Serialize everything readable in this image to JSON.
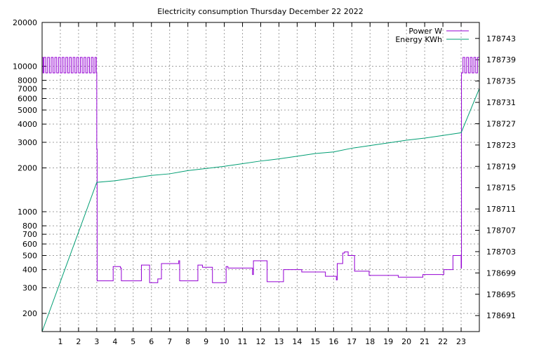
{
  "chart_data": {
    "type": "line",
    "title": "Electricity consumption Thursday December 22 2022",
    "x_ticks": [
      1,
      2,
      3,
      4,
      5,
      6,
      7,
      8,
      9,
      10,
      11,
      12,
      13,
      14,
      15,
      16,
      17,
      18,
      19,
      20,
      21,
      22,
      23
    ],
    "xlim": [
      0,
      24
    ],
    "y_left": {
      "scale": "log",
      "lim": [
        150,
        20000
      ],
      "ticks": [
        200,
        300,
        400,
        500,
        600,
        700,
        800,
        1000,
        2000,
        3000,
        4000,
        5000,
        6000,
        7000,
        8000,
        10000,
        20000
      ]
    },
    "y_right": {
      "lim": [
        178688,
        178746
      ],
      "ticks": [
        178691,
        178695,
        178699,
        178703,
        178707,
        178711,
        178715,
        178719,
        178723,
        178727,
        178731,
        178735,
        178739,
        178743
      ]
    },
    "legend": {
      "placement": "top-right"
    },
    "grid": true,
    "series": [
      {
        "name": "Power W",
        "axis": "left",
        "color": "#9400d3",
        "step": true,
        "points": [
          [
            0.0,
            11500
          ],
          [
            0.05,
            9000
          ],
          [
            0.1,
            11500
          ],
          [
            0.2,
            9000
          ],
          [
            0.3,
            11500
          ],
          [
            0.4,
            9000
          ],
          [
            0.5,
            11500
          ],
          [
            0.6,
            9000
          ],
          [
            0.7,
            11500
          ],
          [
            0.8,
            9000
          ],
          [
            0.9,
            11500
          ],
          [
            1.0,
            9000
          ],
          [
            1.1,
            11500
          ],
          [
            1.2,
            9000
          ],
          [
            1.3,
            11500
          ],
          [
            1.4,
            9000
          ],
          [
            1.5,
            11500
          ],
          [
            1.6,
            9000
          ],
          [
            1.7,
            11500
          ],
          [
            1.8,
            9000
          ],
          [
            1.9,
            11500
          ],
          [
            2.0,
            9000
          ],
          [
            2.1,
            11500
          ],
          [
            2.2,
            9000
          ],
          [
            2.3,
            11500
          ],
          [
            2.4,
            9000
          ],
          [
            2.5,
            11500
          ],
          [
            2.6,
            9000
          ],
          [
            2.7,
            11500
          ],
          [
            2.8,
            9000
          ],
          [
            2.9,
            11500
          ],
          [
            2.98,
            9000
          ],
          [
            3.0,
            2700
          ],
          [
            3.02,
            335
          ],
          [
            3.85,
            335
          ],
          [
            3.9,
            420
          ],
          [
            4.3,
            410
          ],
          [
            4.35,
            335
          ],
          [
            5.4,
            335
          ],
          [
            5.45,
            430
          ],
          [
            5.85,
            430
          ],
          [
            5.9,
            325
          ],
          [
            6.3,
            325
          ],
          [
            6.35,
            345
          ],
          [
            6.5,
            345
          ],
          [
            6.55,
            440
          ],
          [
            7.45,
            440
          ],
          [
            7.5,
            460
          ],
          [
            7.55,
            335
          ],
          [
            8.5,
            335
          ],
          [
            8.55,
            430
          ],
          [
            8.8,
            415
          ],
          [
            9.3,
            415
          ],
          [
            9.35,
            325
          ],
          [
            10.0,
            325
          ],
          [
            10.1,
            420
          ],
          [
            10.2,
            410
          ],
          [
            11.5,
            410
          ],
          [
            11.55,
            370
          ],
          [
            11.6,
            460
          ],
          [
            12.3,
            460
          ],
          [
            12.35,
            330
          ],
          [
            13.2,
            330
          ],
          [
            13.25,
            400
          ],
          [
            14.2,
            400
          ],
          [
            14.25,
            385
          ],
          [
            15.5,
            385
          ],
          [
            15.55,
            360
          ],
          [
            16.1,
            360
          ],
          [
            16.15,
            340
          ],
          [
            16.2,
            440
          ],
          [
            16.45,
            440
          ],
          [
            16.5,
            520
          ],
          [
            16.6,
            530
          ],
          [
            16.8,
            500
          ],
          [
            17.1,
            500
          ],
          [
            17.15,
            390
          ],
          [
            17.9,
            390
          ],
          [
            17.95,
            365
          ],
          [
            19.5,
            365
          ],
          [
            19.55,
            355
          ],
          [
            20.85,
            355
          ],
          [
            20.9,
            370
          ],
          [
            22.0,
            370
          ],
          [
            22.05,
            400
          ],
          [
            22.5,
            400
          ],
          [
            22.55,
            500
          ],
          [
            22.95,
            500
          ],
          [
            23.0,
            410
          ],
          [
            23.02,
            9000
          ],
          [
            23.1,
            11500
          ],
          [
            23.2,
            9000
          ],
          [
            23.3,
            11500
          ],
          [
            23.4,
            9000
          ],
          [
            23.5,
            11500
          ],
          [
            23.6,
            9000
          ],
          [
            23.7,
            11500
          ],
          [
            23.8,
            9000
          ],
          [
            23.9,
            11500
          ],
          [
            24.0,
            9000
          ]
        ]
      },
      {
        "name": "Energy KWh",
        "axis": "right",
        "color": "#009e73",
        "step": false,
        "points": [
          [
            0,
            178688
          ],
          [
            3,
            178716
          ],
          [
            4,
            178716.3
          ],
          [
            5,
            178716.8
          ],
          [
            6,
            178717.3
          ],
          [
            7,
            178717.6
          ],
          [
            8,
            178718.2
          ],
          [
            9,
            178718.6
          ],
          [
            10,
            178719
          ],
          [
            11,
            178719.5
          ],
          [
            12,
            178720
          ],
          [
            13,
            178720.4
          ],
          [
            14,
            178720.9
          ],
          [
            15,
            178721.4
          ],
          [
            16,
            178721.7
          ],
          [
            17,
            178722.4
          ],
          [
            18,
            178722.9
          ],
          [
            19,
            178723.4
          ],
          [
            20,
            178723.9
          ],
          [
            21,
            178724.3
          ],
          [
            22,
            178724.8
          ],
          [
            23,
            178725.3
          ],
          [
            24,
            178733.6
          ]
        ]
      }
    ]
  }
}
